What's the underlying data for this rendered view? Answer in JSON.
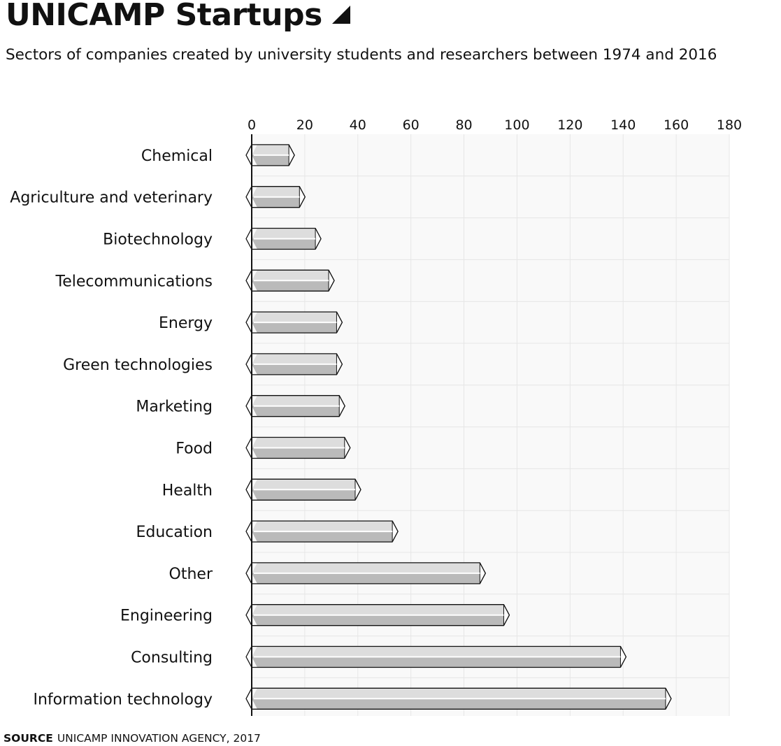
{
  "title": "UNICAMP Startups",
  "subtitle": "Sectors of companies created by university students and researchers between 1974 and 2016",
  "source": {
    "tag": "SOURCE",
    "text": "UNICAMP INNOVATION AGENCY, 2017"
  },
  "colors": {
    "plot_bg": "#f9f9f9",
    "grid": "#e6e6e6",
    "bar_light": "#dddddd",
    "bar_dark": "#bababa",
    "bar_outline": "#111111",
    "axis": "#111111"
  },
  "chart_data": {
    "type": "bar",
    "orientation": "horizontal",
    "categories": [
      "Chemical",
      "Agriculture and veterinary",
      "Biotechnology",
      "Telecommunications",
      "Energy",
      "Green technologies",
      "Marketing",
      "Food",
      "Health",
      "Education",
      "Other",
      "Engineering",
      "Consulting",
      "Information technology"
    ],
    "values": [
      14,
      18,
      24,
      29,
      32,
      32,
      33,
      35,
      39,
      53,
      86,
      95,
      139,
      156
    ],
    "xlim": [
      0,
      180
    ],
    "x_ticks": [
      0,
      20,
      40,
      60,
      80,
      100,
      120,
      140,
      160,
      180
    ],
    "x_axis_position": "top",
    "grid": true
  }
}
